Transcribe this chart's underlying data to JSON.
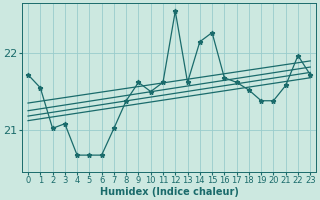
{
  "xlabel": "Humidex (Indice chaleur)",
  "bg_color": "#cce8e0",
  "grid_color": "#99cccc",
  "line_color": "#1a6b6b",
  "xlim": [
    -0.5,
    23.5
  ],
  "ylim": [
    20.45,
    22.65
  ],
  "yticks": [
    21,
    22
  ],
  "xticks": [
    0,
    1,
    2,
    3,
    4,
    5,
    6,
    7,
    8,
    9,
    10,
    11,
    12,
    13,
    14,
    15,
    16,
    17,
    18,
    19,
    20,
    21,
    22,
    23
  ],
  "main_x": [
    0,
    1,
    2,
    3,
    4,
    5,
    6,
    7,
    8,
    9,
    10,
    11,
    12,
    13,
    14,
    15,
    16,
    17,
    18,
    19,
    20,
    21,
    22,
    23
  ],
  "main_y": [
    21.72,
    21.55,
    21.02,
    21.08,
    20.67,
    20.67,
    20.67,
    21.02,
    21.38,
    21.62,
    21.5,
    21.62,
    22.55,
    21.62,
    22.15,
    22.27,
    21.68,
    21.62,
    21.52,
    21.38,
    21.38,
    21.58,
    21.97,
    21.72
  ],
  "trend_lines": [
    {
      "x": [
        0,
        23
      ],
      "y": [
        21.35,
        21.9
      ]
    },
    {
      "x": [
        0,
        23
      ],
      "y": [
        21.25,
        21.82
      ]
    },
    {
      "x": [
        0,
        23
      ],
      "y": [
        21.18,
        21.75
      ]
    },
    {
      "x": [
        0,
        23
      ],
      "y": [
        21.12,
        21.68
      ]
    }
  ]
}
